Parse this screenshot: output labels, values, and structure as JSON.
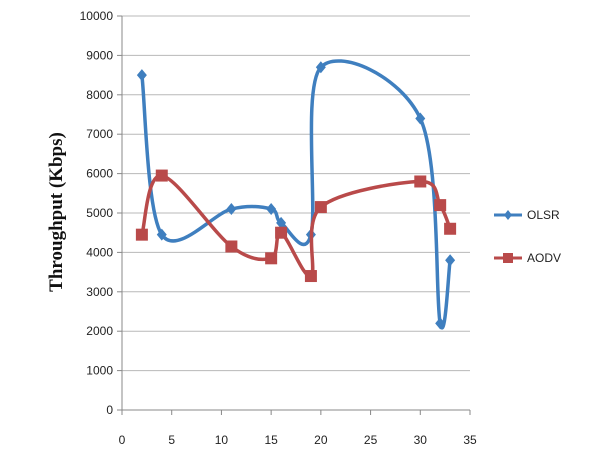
{
  "chart_data": {
    "type": "line",
    "title": "",
    "xlabel": "",
    "ylabel": "Throughput (Kbps)",
    "xlim": [
      0,
      35
    ],
    "ylim": [
      0,
      10000
    ],
    "x_ticks": [
      0,
      5,
      10,
      15,
      20,
      25,
      30,
      35
    ],
    "y_ticks": [
      0,
      1000,
      2000,
      3000,
      4000,
      5000,
      6000,
      7000,
      8000,
      9000,
      10000
    ],
    "grid": "horizontal",
    "legend_position": "right",
    "series": [
      {
        "name": "OLSR",
        "color": "#3f7fbf",
        "marker": "diamond",
        "points": [
          [
            2,
            8500
          ],
          [
            4,
            4450
          ],
          [
            11,
            5100
          ],
          [
            15,
            5100
          ],
          [
            16,
            4750
          ],
          [
            19,
            4450
          ],
          [
            20,
            8700
          ],
          [
            30,
            7400
          ],
          [
            32,
            2200
          ],
          [
            33,
            3800
          ]
        ]
      },
      {
        "name": "AODV",
        "color": "#b94a4a",
        "marker": "square",
        "points": [
          [
            2,
            4450
          ],
          [
            4,
            5950
          ],
          [
            11,
            4150
          ],
          [
            15,
            3850
          ],
          [
            16,
            4500
          ],
          [
            19,
            3400
          ],
          [
            20,
            5150
          ],
          [
            30,
            5800
          ],
          [
            32,
            5200
          ],
          [
            33,
            4600
          ]
        ]
      }
    ]
  }
}
